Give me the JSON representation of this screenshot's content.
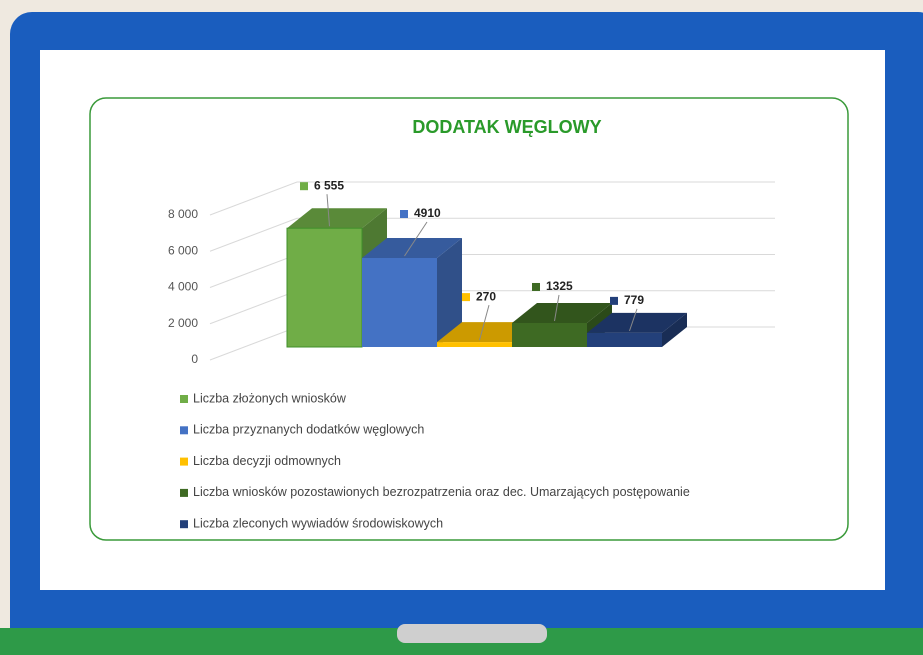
{
  "chart_data": {
    "type": "bar",
    "title": "DODATAK WĘGLOWY",
    "series": [
      {
        "name": "Liczba złożonych wniosków",
        "color": "#70ad47",
        "values": [
          6555
        ],
        "value_labels": [
          "6 555"
        ]
      },
      {
        "name": "Liczba przyznanych dodatków węglowych",
        "color": "#4472c4",
        "values": [
          4910
        ],
        "value_labels": [
          "4910"
        ]
      },
      {
        "name": "Liczba decyzji odmownych",
        "color": "#ffc000",
        "values": [
          270
        ],
        "value_labels": [
          "270"
        ]
      },
      {
        "name": "Liczba wniosków pozostawionych bezrozpatrzenia oraz dec. Umarzających postępowanie",
        "color": "#3e6a23",
        "values": [
          1325
        ],
        "value_labels": [
          "1325"
        ]
      },
      {
        "name": "Liczba zleconych wywiadów środowiskowych",
        "color": "#23407a",
        "values": [
          779
        ],
        "value_labels": [
          "779"
        ]
      }
    ],
    "ylim": [
      0,
      8000
    ],
    "yticks": [
      0,
      {
        "value": 2000,
        "label": "2 000"
      },
      {
        "value": 4000,
        "label": "4 000"
      },
      {
        "value": 6000,
        "label": "6 000"
      },
      {
        "value": 8000,
        "label": "8 000"
      }
    ],
    "grid": true,
    "legend": "bottom"
  }
}
